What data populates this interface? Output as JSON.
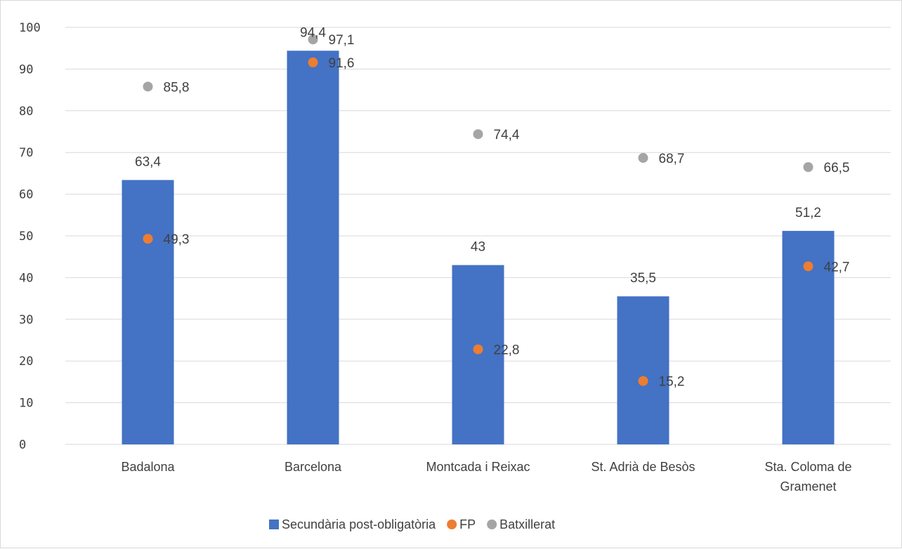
{
  "chart_data": {
    "type": "bar",
    "title": "",
    "xlabel": "",
    "ylabel": "",
    "ylim": [
      0,
      100
    ],
    "yticks": [
      0,
      10,
      20,
      30,
      40,
      50,
      60,
      70,
      80,
      90,
      100
    ],
    "ytick_labels": [
      "0",
      "10",
      "20",
      "30",
      "40",
      "50",
      "60",
      "70",
      "80",
      "90",
      "100"
    ],
    "grid": true,
    "legend_position": "bottom",
    "categories": [
      "Badalona",
      "Barcelona",
      "Montcada i Reixac",
      "St. Adrià de Besòs",
      "Sta. Coloma de Gramenet"
    ],
    "category_lines": [
      [
        "Badalona"
      ],
      [
        "Barcelona"
      ],
      [
        "Montcada i Reixac"
      ],
      [
        "St. Adrià de Besòs"
      ],
      [
        "Sta. Coloma de",
        "Gramenet"
      ]
    ],
    "series": [
      {
        "name": "Secundària post-obligatòria",
        "kind": "bar",
        "color": "#4472C4",
        "values": [
          63.4,
          94.4,
          43,
          35.5,
          51.2
        ],
        "labels": [
          "63,4",
          "94,4",
          "43",
          "35,5",
          "51,2"
        ]
      },
      {
        "name": "FP",
        "kind": "marker",
        "color": "#ED7D31",
        "values": [
          49.3,
          91.6,
          22.8,
          15.2,
          42.7
        ],
        "labels": [
          "49,3",
          "91,6",
          "22,8",
          "15,2",
          "42,7"
        ]
      },
      {
        "name": "Batxillerat",
        "kind": "marker",
        "color": "#A5A5A5",
        "values": [
          85.8,
          97.1,
          74.4,
          68.7,
          66.5
        ],
        "labels": [
          "85,8",
          "97,1",
          "74,4",
          "68,7",
          "66,5"
        ]
      }
    ]
  }
}
